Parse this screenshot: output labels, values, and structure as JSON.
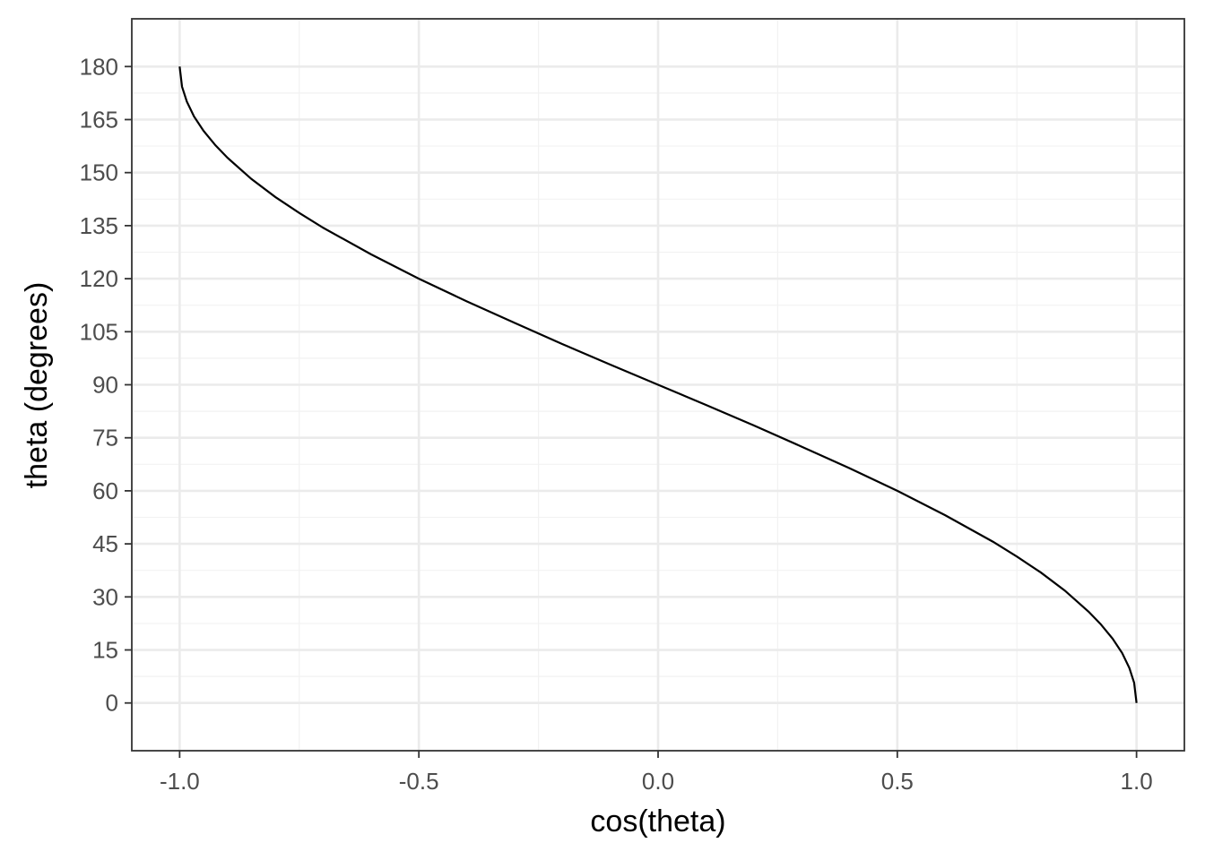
{
  "chart_data": {
    "type": "line",
    "xlabel": "cos(theta)",
    "ylabel": "theta (degrees)",
    "xlim": [
      -1.1,
      1.1
    ],
    "ylim": [
      -13.5,
      193.5
    ],
    "x_ticks": [
      -1.0,
      -0.5,
      0.0,
      0.5,
      1.0
    ],
    "x_tick_labels": [
      "-1.0",
      "-0.5",
      "0.0",
      "0.5",
      "1.0"
    ],
    "y_ticks": [
      0,
      15,
      30,
      45,
      60,
      75,
      90,
      105,
      120,
      135,
      150,
      165,
      180
    ],
    "y_tick_labels": [
      "0",
      "15",
      "30",
      "45",
      "60",
      "75",
      "90",
      "105",
      "120",
      "135",
      "150",
      "165",
      "180"
    ],
    "grid": true,
    "series": [
      {
        "x": [
          1.0,
          0.995,
          0.985,
          0.97,
          0.95,
          0.925,
          0.9,
          0.85,
          0.8,
          0.75,
          0.7,
          0.6,
          0.5,
          0.4,
          0.3,
          0.2,
          0.1,
          0.0,
          -0.1,
          -0.2,
          -0.3,
          -0.4,
          -0.5,
          -0.6,
          -0.7,
          -0.75,
          -0.8,
          -0.85,
          -0.9,
          -0.925,
          -0.95,
          -0.97,
          -0.985,
          -0.995,
          -1.0
        ],
        "y": [
          0,
          5.7,
          9.9,
          14.1,
          18.2,
          22.3,
          25.8,
          31.8,
          36.9,
          41.4,
          45.6,
          53.1,
          60.0,
          66.4,
          72.5,
          78.5,
          84.3,
          90.0,
          95.7,
          101.5,
          107.5,
          113.6,
          120.0,
          126.9,
          134.4,
          138.6,
          143.1,
          148.2,
          154.2,
          157.7,
          161.8,
          165.9,
          170.1,
          174.3,
          180
        ]
      }
    ],
    "colors": {
      "line": "#000000",
      "grid_major": "#ebebeb",
      "grid_minor": "#f2f2f2",
      "panel_border": "#333333",
      "tick_text": "#4d4d4d"
    }
  }
}
